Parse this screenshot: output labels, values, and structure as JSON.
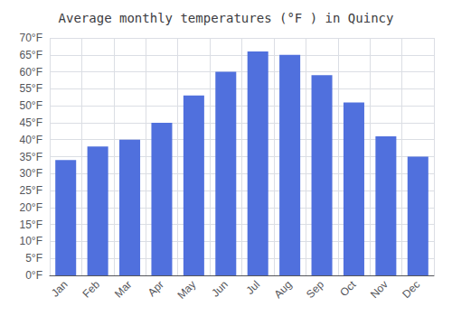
{
  "chart_data": {
    "type": "bar",
    "title": "Average monthly temperatures (°F ) in Quincy",
    "categories": [
      "Jan",
      "Feb",
      "Mar",
      "Apr",
      "May",
      "Jun",
      "Jul",
      "Aug",
      "Sep",
      "Oct",
      "Nov",
      "Dec"
    ],
    "values": [
      34,
      38,
      40,
      45,
      53,
      60,
      66,
      65,
      59,
      51,
      41,
      35
    ],
    "ylim": [
      0,
      70
    ],
    "yticks": [
      {
        "value": 0,
        "label": "0°F"
      },
      {
        "value": 5,
        "label": "5°F"
      },
      {
        "value": 10,
        "label": "10°F"
      },
      {
        "value": 15,
        "label": "15°F"
      },
      {
        "value": 20,
        "label": "20°F"
      },
      {
        "value": 25,
        "label": "25°F"
      },
      {
        "value": 30,
        "label": "30°F"
      },
      {
        "value": 35,
        "label": "35°F"
      },
      {
        "value": 40,
        "label": "40°F"
      },
      {
        "value": 45,
        "label": "45°F"
      },
      {
        "value": 50,
        "label": "50°F"
      },
      {
        "value": 55,
        "label": "55°F"
      },
      {
        "value": 60,
        "label": "60°F"
      },
      {
        "value": 65,
        "label": "65°F"
      },
      {
        "value": 70,
        "label": "70°F"
      }
    ],
    "grid": true
  }
}
